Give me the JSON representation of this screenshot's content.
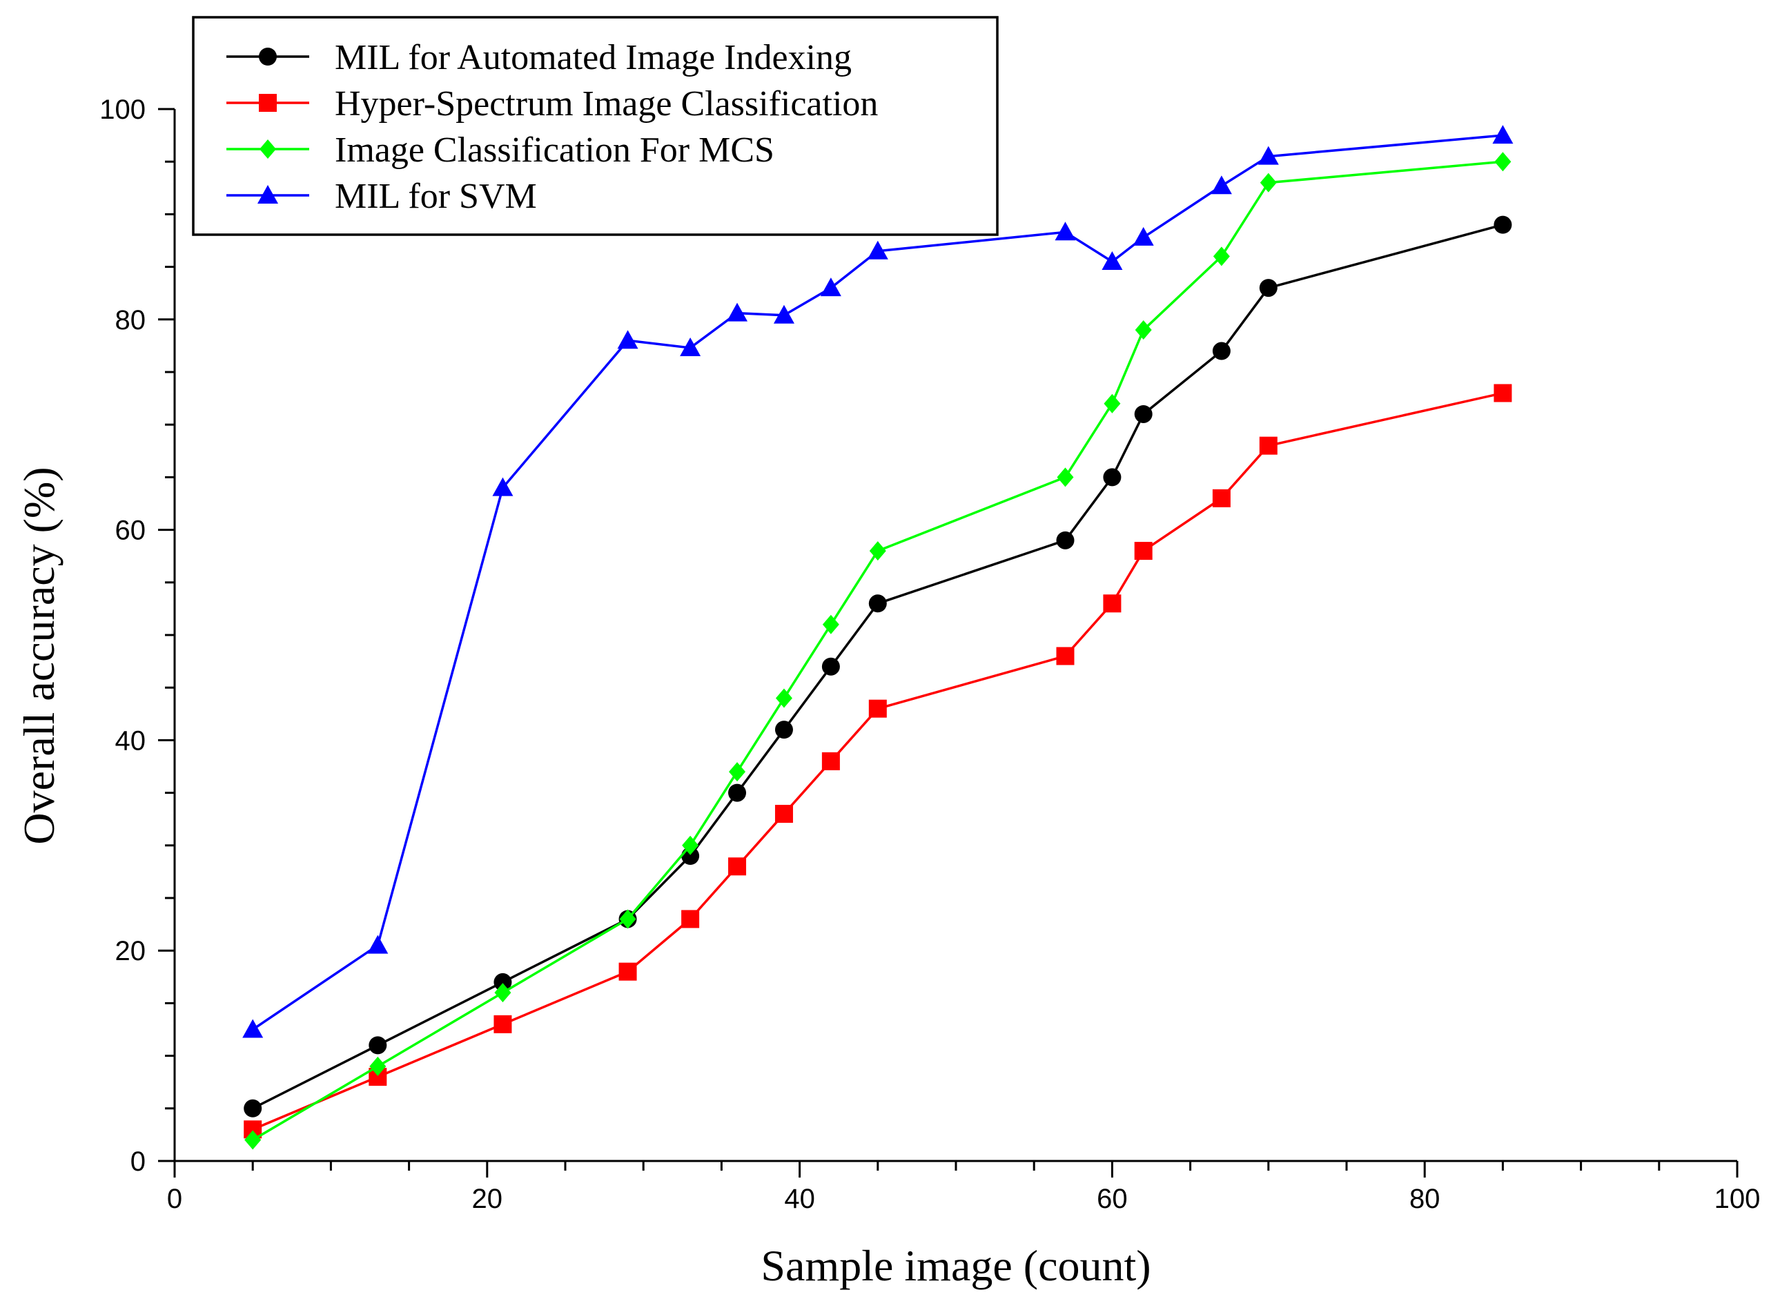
{
  "chart_data": {
    "type": "line",
    "title": "",
    "xlabel": "Sample image (count)",
    "ylabel": "Overall accuracy (%)",
    "xlim": [
      0,
      100
    ],
    "ylim": [
      0,
      100
    ],
    "xticks": [
      0,
      20,
      40,
      60,
      80,
      100
    ],
    "yticks": [
      0,
      20,
      40,
      60,
      80,
      100
    ],
    "xtick_labels": [
      "0",
      "20",
      "40",
      "60",
      "80",
      "100"
    ],
    "ytick_labels": [
      "0",
      "20",
      "40",
      "60",
      "80",
      "100"
    ],
    "grid": false,
    "legend_position": "top-left",
    "x": [
      5,
      13,
      21,
      29,
      33,
      36,
      39,
      42,
      45,
      57,
      60,
      62,
      67,
      70,
      85
    ],
    "series": [
      {
        "name": "MIL for Automated Image Indexing",
        "color": "#000000",
        "marker": "circle",
        "values": [
          5,
          11,
          17,
          23,
          29,
          35,
          41,
          47,
          53,
          59,
          65,
          71,
          77,
          83,
          89
        ]
      },
      {
        "name": "Hyper-Spectrum Image Classification",
        "color": "#ff0000",
        "marker": "square",
        "values": [
          3,
          8,
          13,
          18,
          23,
          28,
          33,
          38,
          43,
          48,
          53,
          58,
          63,
          68,
          73
        ]
      },
      {
        "name": "Image Classification For MCS",
        "color": "#00ff00",
        "marker": "diamond",
        "values": [
          2,
          9,
          16,
          23,
          30,
          37,
          44,
          51,
          58,
          65,
          72,
          79,
          86,
          93,
          95
        ]
      },
      {
        "name": "MIL for SVM",
        "color": "#0000ff",
        "marker": "triangle",
        "values": [
          12.5,
          20.5,
          64,
          78,
          77.3,
          80.6,
          80.4,
          83,
          86.5,
          88.3,
          85.5,
          87.8,
          92.7,
          95.5,
          97.5
        ]
      }
    ]
  }
}
